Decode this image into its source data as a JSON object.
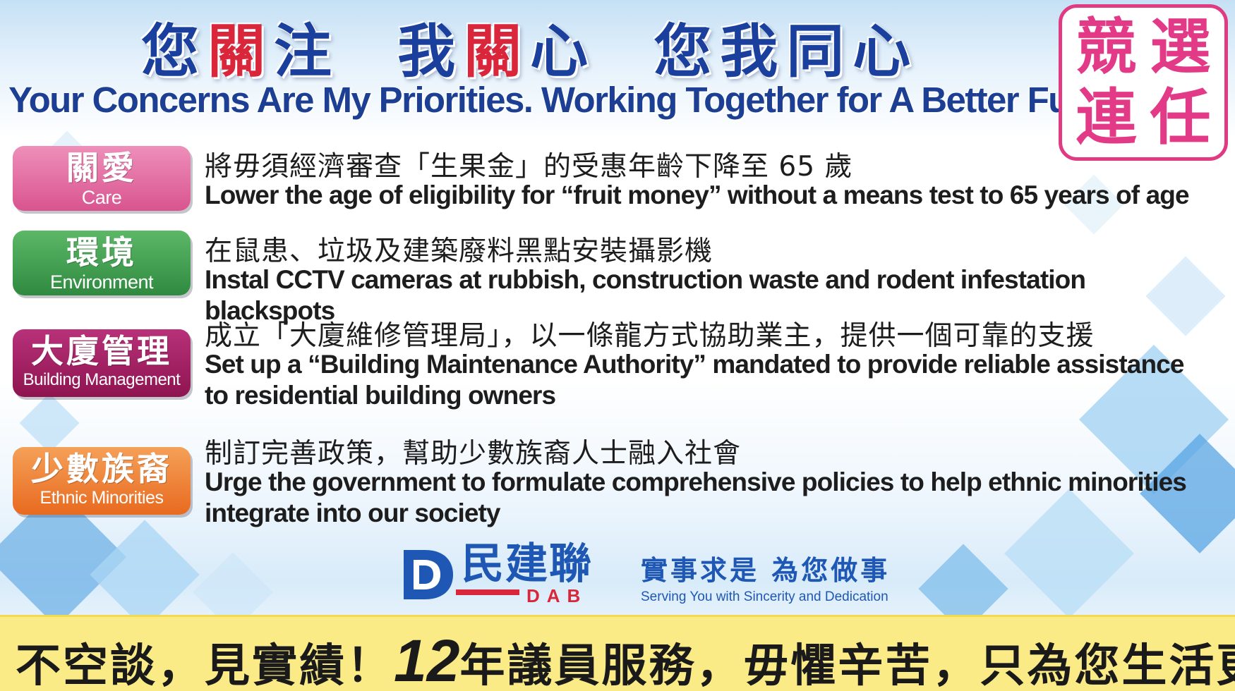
{
  "header": {
    "title_zh_1": "您",
    "title_zh_2": "關",
    "title_zh_3": "注  我",
    "title_zh_4": "關",
    "title_zh_5": "心  您我同心",
    "title_en": "Your Concerns Are My Priorities. Working Together for A Better Future.",
    "stamp": [
      "競",
      "選",
      "連",
      "任"
    ]
  },
  "items": [
    {
      "badge_zh": "關愛",
      "badge_en": "Care",
      "color": "#e2659c",
      "text_zh": "將毋須經濟審查「生果金」的受惠年齡下降至 65 歲",
      "text_en": "Lower the age of eligibility for “fruit money” without a means test to 65 years of age"
    },
    {
      "badge_zh": "環境",
      "badge_en": "Environment",
      "color": "#3c9a4c",
      "text_zh": "在鼠患、垃圾及建築廢料黑點安裝攝影機",
      "text_en": "Instal CCTV cameras at rubbish, construction waste and rodent infestation blackspots"
    },
    {
      "badge_zh": "大廈管理",
      "badge_en": "Building Management",
      "color": "#a3195d",
      "text_zh": "成立「大廈維修管理局」，以一條龍方式協助業主，提供一個可靠的支援",
      "text_en": "Set up a “Building Maintenance Authority” mandated to provide reliable assistance to residential building owners"
    },
    {
      "badge_zh": "少數族裔",
      "badge_en": "Ethnic Minorities",
      "color": "#ef7f30",
      "text_zh": "制訂完善政策，幫助少數族裔人士融入社會",
      "text_en": "Urge the government to formulate comprehensive policies to help ethnic minorities integrate into our society"
    }
  ],
  "logo": {
    "zh": "民建聯",
    "en": "DAB",
    "slogan_zh": "實事求是  為您做事",
    "slogan_en": "Serving You with Sincerity and Dedication"
  },
  "banner": {
    "part1": "不空談，見實績！",
    "number": "12",
    "part2": "年議員服務，毋懼辛苦，只為您生活更安定！"
  }
}
